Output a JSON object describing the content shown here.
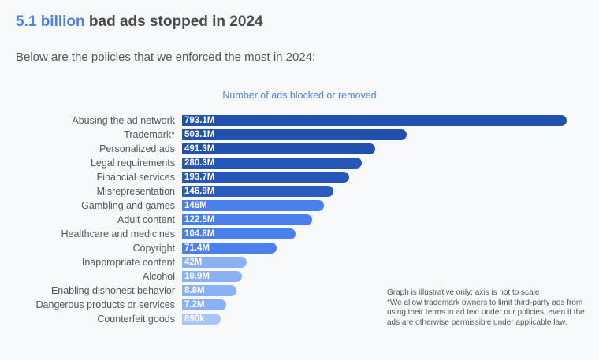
{
  "header": {
    "title_highlight": "5.1 billion",
    "title_rest": " bad ads stopped in 2024",
    "subtitle": "Below are the policies that we enforced the most in 2024:"
  },
  "chart_data": {
    "type": "bar",
    "orientation": "horizontal",
    "xlabel": "Number of ads blocked or removed",
    "categories": [
      "Abusing the ad network",
      "Trademark*",
      "Personalized ads",
      "Legal requirements",
      "Financial services",
      "Misrepresentation",
      "Gambling and games",
      "Adult content",
      "Healthcare and medicines",
      "Copyright",
      "Inappropriate content",
      "Alcohol",
      "Enabling dishonest behavior",
      "Dangerous products or services",
      "Counterfeit goods"
    ],
    "values": [
      793100000,
      503100000,
      491300000,
      280300000,
      193700000,
      146900000,
      146000000,
      122500000,
      104800000,
      71400000,
      42000000,
      10900000,
      8800000,
      7200000,
      890000
    ],
    "data_labels": [
      "793.1M",
      "503.1M",
      "491.3M",
      "280.3M",
      "193.7M",
      "146.9M",
      "146M",
      "122.5M",
      "104.8M",
      "71.4M",
      "42M",
      "10.9M",
      "8.8M",
      "7.2M",
      "890k"
    ],
    "colors": [
      "#2250ad",
      "#2250ad",
      "#2250ad",
      "#2557b8",
      "#2557b8",
      "#2a5cc0",
      "#4a80ee",
      "#4a80ee",
      "#4a80ee",
      "#4a80ee",
      "#8ab0f5",
      "#8ab0f5",
      "#8ab0f5",
      "#8ab0f5",
      "#a9c4f7"
    ],
    "grid": false
  },
  "notes": {
    "line1": "Graph is illustrative only; axis is not to scale",
    "line2": "*We allow trademark owners to limit third-party ads from using their terms in ad text under our policies, even if the ads are otherwise permissible under applicable law."
  }
}
